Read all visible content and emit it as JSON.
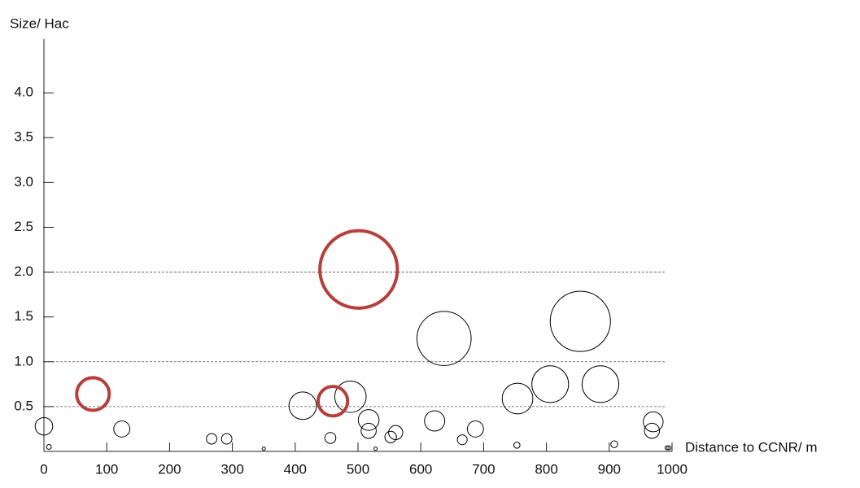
{
  "chart_data": {
    "type": "bubble",
    "ylabel": "Size/ Hac",
    "xlabel": "Distance to CCNR/ m",
    "xlim": [
      0,
      1000
    ],
    "ylim": [
      0,
      4.6
    ],
    "xticks": [
      0,
      100,
      200,
      300,
      400,
      500,
      600,
      700,
      800,
      900,
      1000
    ],
    "yticks": [
      0.5,
      {
        "value": 1,
        "label": "1.0"
      },
      1.5,
      {
        "value": 2,
        "label": "2.0"
      },
      2.5,
      {
        "value": 3,
        "label": "3.0"
      },
      3.5,
      {
        "value": 4,
        "label": "4.0"
      }
    ],
    "grid_lines": [
      0.5,
      1,
      2
    ],
    "series": [
      {
        "color": "#000000",
        "x": [
          0,
          8,
          124,
          267,
          291,
          350,
          412,
          456,
          488,
          517,
          517,
          528,
          552,
          560,
          622,
          637,
          666,
          687,
          754,
          753,
          806,
          854,
          886,
          908,
          970,
          968,
          992,
          995
        ],
        "values": [
          0.28,
          0.05,
          0.25,
          0.14,
          0.14,
          0.03,
          0.51,
          0.15,
          0.61,
          0.35,
          0.23,
          0.03,
          0.16,
          0.21,
          0.34,
          1.26,
          0.13,
          0.25,
          0.59,
          0.07,
          0.75,
          1.45,
          0.75,
          0.08,
          0.33,
          0.23,
          0.04,
          0.04
        ]
      },
      {
        "color": "#b5403a",
        "x": [
          78,
          460,
          501
        ],
        "values": [
          0.64,
          0.56,
          2.03
        ]
      }
    ]
  }
}
